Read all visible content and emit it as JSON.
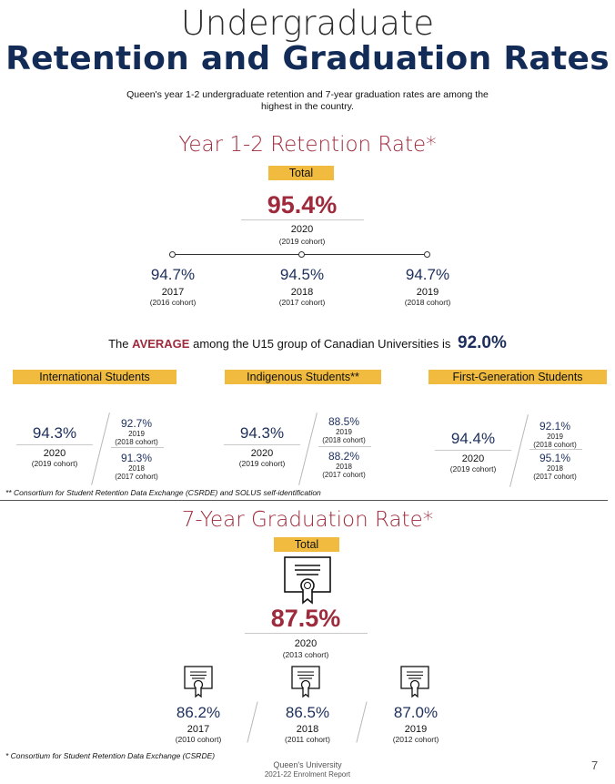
{
  "header": {
    "pre_title": "Undergraduate",
    "title": "Retention and Graduation Rates",
    "intro": "Queen's year 1-2 undergraduate retention and 7-year graduation rates are among the highest in the country."
  },
  "retention": {
    "title": "Year 1-2 Retention Rate*",
    "total_label": "Total",
    "total_value": "95.4%",
    "total_year": "2020",
    "total_cohort": "(2019 cohort)",
    "timeline": [
      {
        "value": "94.7%",
        "year": "2017",
        "cohort": "(2016 cohort)"
      },
      {
        "value": "94.5%",
        "year": "2018",
        "cohort": "(2017 cohort)"
      },
      {
        "value": "94.7%",
        "year": "2019",
        "cohort": "(2018 cohort)"
      }
    ],
    "average": {
      "prefix": "The",
      "keyword": "AVERAGE",
      "text": "among the U15 group of Canadian Universities is",
      "value": "92.0%"
    },
    "groups": [
      {
        "label": "International Students",
        "main_value": "94.3%",
        "main_year": "2020",
        "main_cohort": "(2019 cohort)",
        "a_value": "92.7%",
        "a_year": "2019",
        "a_cohort": "(2018 cohort)",
        "b_value": "91.3%",
        "b_year": "2018",
        "b_cohort": "(2017 cohort)"
      },
      {
        "label": "Indigenous Students**",
        "main_value": "94.3%",
        "main_year": "2020",
        "main_cohort": "(2019 cohort)",
        "a_value": "88.5%",
        "a_year": "2019",
        "a_cohort": "(2018 cohort)",
        "b_value": "88.2%",
        "b_year": "2018",
        "b_cohort": "(2017 cohort)"
      },
      {
        "label": "First-Generation Students",
        "main_value": "94.4%",
        "main_year": "2020",
        "main_cohort": "(2019 cohort)",
        "a_value": "92.1%",
        "a_year": "2019",
        "a_cohort": "(2018 cohort)",
        "b_value": "95.1%",
        "b_year": "2018",
        "b_cohort": "(2017 cohort)"
      }
    ],
    "footnote": "** Consortium for Student Retention Data Exchange (CSRDE) and SOLUS self-identification"
  },
  "graduation": {
    "title": "7-Year Graduation Rate*",
    "total_label": "Total",
    "total_icon": "diploma-icon",
    "total_value": "87.5%",
    "total_year": "2020",
    "total_cohort": "(2013 cohort)",
    "items": [
      {
        "icon": "diploma-icon",
        "value": "86.2%",
        "year": "2017",
        "cohort": "(2010 cohort)"
      },
      {
        "icon": "diploma-icon",
        "value": "86.5%",
        "year": "2018",
        "cohort": "(2011 cohort)"
      },
      {
        "icon": "diploma-icon",
        "value": "87.0%",
        "year": "2019",
        "cohort": "(2012 cohort)"
      }
    ],
    "footnote": "* Consortium for Student Retention Data Exchange (CSRDE)"
  },
  "footer": {
    "org": "Queen's University",
    "report": "2021-22 Enrolment Report",
    "page": "7"
  },
  "colors": {
    "navy": "#1c2f5c",
    "accent_red": "#9e2a3c",
    "gold": "#f0bb3f"
  }
}
